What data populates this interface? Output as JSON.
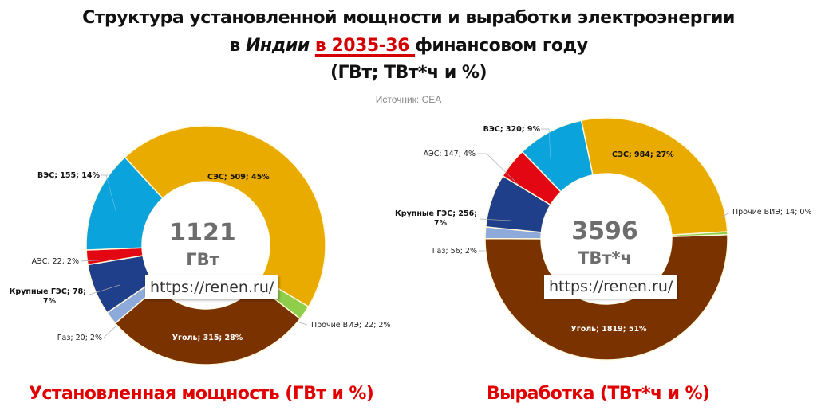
{
  "header": {
    "title_line1": "Структура установленной мощности и выработки электроэнергии",
    "title_line2_prefix": "в ",
    "title_line2_country": "Индии",
    "title_line2_year": "в 2035-36 ",
    "title_line2_suffix": "финансовом году",
    "title_line3": "(ГВт; ТВт*ч и %)",
    "source": "Источник: CEA"
  },
  "colors": {
    "coal": "#7a3300",
    "gas": "#8eaadb",
    "hydro": "#1f3f8a",
    "nuclear": "#e30613",
    "wind": "#0aa3dc",
    "solar": "#e9ab00",
    "other_re": "#8fce4a",
    "footer_red": "#e00000",
    "title_red": "#d40000"
  },
  "watermark": "https://renen.ru/",
  "footer": {
    "left": "Установленная мощность (ГВт и %)",
    "right": "Выработка (ТВт*ч и %)"
  },
  "chart_data": [
    {
      "type": "pie",
      "variant": "donut",
      "title": "Установленная мощность (ГВт и %)",
      "center_value": "1121",
      "center_unit": "ГВт",
      "total": 1121,
      "unit": "ГВт",
      "categories": [
        "Уголь",
        "Газ",
        "Крупные ГЭС",
        "АЭС",
        "ВЭС",
        "СЭС",
        "Прочие ВИЭ"
      ],
      "values": [
        315,
        20,
        78,
        22,
        155,
        509,
        22
      ],
      "percents": [
        28,
        2,
        7,
        2,
        14,
        45,
        2
      ],
      "labels": [
        "Уголь; 315; 28%",
        "Газ; 20; 2%",
        "Крупные ГЭС; 78; 7%",
        "АЭС; 22; 2%",
        "ВЭС; 155; 14%",
        "СЭС; 509; 45%",
        "Прочие ВИЭ; 22; 2%"
      ]
    },
    {
      "type": "pie",
      "variant": "donut",
      "title": "Выработка (ТВт*ч и %)",
      "center_value": "3596",
      "center_unit": "ТВт*ч",
      "total": 3596,
      "unit": "ТВт*ч",
      "categories": [
        "Уголь",
        "Газ",
        "Крупные ГЭС",
        "АЭС",
        "ВЭС",
        "СЭС",
        "Прочие ВИЭ"
      ],
      "values": [
        1819,
        56,
        256,
        147,
        320,
        984,
        14
      ],
      "percents": [
        51,
        2,
        7,
        4,
        9,
        27,
        0
      ],
      "labels": [
        "Уголь; 1819; 51%",
        "Газ; 56; 2%",
        "Крупные ГЭС; 256; 7%",
        "АЭС; 147; 4%",
        "ВЭС; 320; 9%",
        "СЭС; 984; 27%",
        "Прочие ВИЭ; 14; 0%"
      ]
    }
  ]
}
